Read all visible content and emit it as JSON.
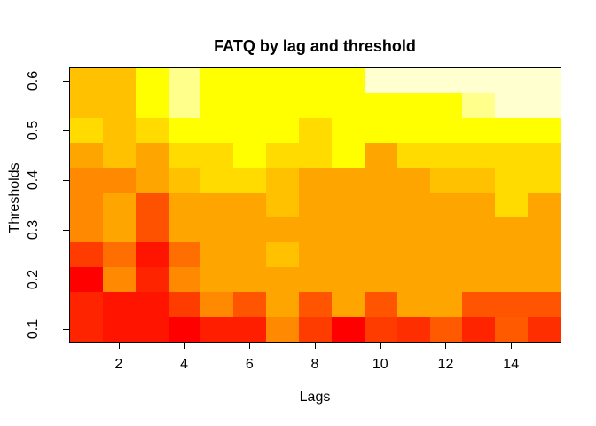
{
  "title": "FATQ by lag and threshold",
  "colors": {
    "background": "#FFFFFF",
    "frame": "#000000",
    "text": "#000000"
  },
  "chart_data": {
    "type": "heatmap",
    "title": "FATQ by lag and threshold",
    "xlabel": "Lags",
    "ylabel": "Thresholds",
    "x_values": [
      1,
      2,
      3,
      4,
      5,
      6,
      7,
      8,
      9,
      10,
      11,
      12,
      13,
      14,
      15
    ],
    "x_tick_labels": [
      "2",
      "4",
      "6",
      "8",
      "10",
      "12",
      "14"
    ],
    "x_tick_values": [
      2,
      4,
      6,
      8,
      10,
      12,
      14
    ],
    "y_tick_labels": [
      "0.1",
      "0.2",
      "0.3",
      "0.4",
      "0.5",
      "0.6"
    ],
    "y_tick_values": [
      0.1,
      0.2,
      0.3,
      0.4,
      0.5,
      0.6
    ],
    "rows_top_to_bottom": [
      0.6,
      0.55,
      0.5,
      0.45,
      0.4,
      0.35,
      0.3,
      0.25,
      0.2,
      0.15,
      0.1
    ],
    "legend": "none",
    "grid_lines": "off",
    "cell_colors": [
      [
        "#FFC100",
        "#FFC100",
        "#FFFF00",
        "#FFFF8C",
        "#FFFF00",
        "#FFFF00",
        "#FFFF00",
        "#FFFF00",
        "#FFFF00",
        "#FFFFD0",
        "#FFFFD0",
        "#FFFFD0",
        "#FFFFD0",
        "#FFFFD0",
        "#FFFFD0"
      ],
      [
        "#FFC100",
        "#FFC100",
        "#FFFF00",
        "#FFFF8C",
        "#FFFF00",
        "#FFFF00",
        "#FFFF00",
        "#FFFF00",
        "#FFFF00",
        "#FFFF00",
        "#FFFF00",
        "#FFFF00",
        "#FFFF8C",
        "#FFFFD0",
        "#FFFFD0"
      ],
      [
        "#FFDB00",
        "#FFC100",
        "#FFDB00",
        "#FFFF00",
        "#FFFF00",
        "#FFFF00",
        "#FFFF00",
        "#FFDB00",
        "#FFFF00",
        "#FFFF00",
        "#FFFF00",
        "#FFFF00",
        "#FFFF00",
        "#FFFF00",
        "#FFFF00"
      ],
      [
        "#FFA500",
        "#FFC100",
        "#FFA500",
        "#FFDB00",
        "#FFDB00",
        "#FFFF00",
        "#FFDB00",
        "#FFDB00",
        "#FFFF00",
        "#FFA500",
        "#FFDB00",
        "#FFDB00",
        "#FFDB00",
        "#FFDB00",
        "#FFDB00"
      ],
      [
        "#FF8900",
        "#FF8900",
        "#FFA500",
        "#FFC100",
        "#FFDB00",
        "#FFDB00",
        "#FFC100",
        "#FFA500",
        "#FFA500",
        "#FFA500",
        "#FFA500",
        "#FFC100",
        "#FFC100",
        "#FFDB00",
        "#FFDB00"
      ],
      [
        "#FF8900",
        "#FFA500",
        "#FF5200",
        "#FFA500",
        "#FFA500",
        "#FFA500",
        "#FFC100",
        "#FFA500",
        "#FFA500",
        "#FFA500",
        "#FFA500",
        "#FFA500",
        "#FFA500",
        "#FFDB00",
        "#FFA500"
      ],
      [
        "#FF8900",
        "#FFA500",
        "#FF5200",
        "#FFA500",
        "#FFA500",
        "#FFA500",
        "#FFA500",
        "#FFA500",
        "#FFA500",
        "#FFA500",
        "#FFA500",
        "#FFA500",
        "#FFA500",
        "#FFA500",
        "#FFA500"
      ],
      [
        "#FF3C00",
        "#FF6E00",
        "#FF1400",
        "#FF6E00",
        "#FFA500",
        "#FFA500",
        "#FFC100",
        "#FFA500",
        "#FFA500",
        "#FFA500",
        "#FFA500",
        "#FFA500",
        "#FFA500",
        "#FFA500",
        "#FFA500"
      ],
      [
        "#FF0000",
        "#FF8900",
        "#FF2400",
        "#FF8900",
        "#FFA500",
        "#FFA500",
        "#FFA500",
        "#FFA500",
        "#FFA500",
        "#FFA500",
        "#FFA500",
        "#FFA500",
        "#FFA500",
        "#FFA500",
        "#FFA500"
      ],
      [
        "#FF2400",
        "#FF1400",
        "#FF1400",
        "#FF3C00",
        "#FF8900",
        "#FF5500",
        "#FFA500",
        "#FF5500",
        "#FFA500",
        "#FF5500",
        "#FFA500",
        "#FFA500",
        "#FF5500",
        "#FF5500",
        "#FF5500"
      ],
      [
        "#FF2400",
        "#FF1400",
        "#FF1400",
        "#FF0000",
        "#FF1F00",
        "#FF1F00",
        "#FF8900",
        "#FF3C00",
        "#FF0000",
        "#FF3C00",
        "#FF2E00",
        "#FF5A00",
        "#FF2400",
        "#FF5A00",
        "#FF2E00"
      ]
    ]
  }
}
